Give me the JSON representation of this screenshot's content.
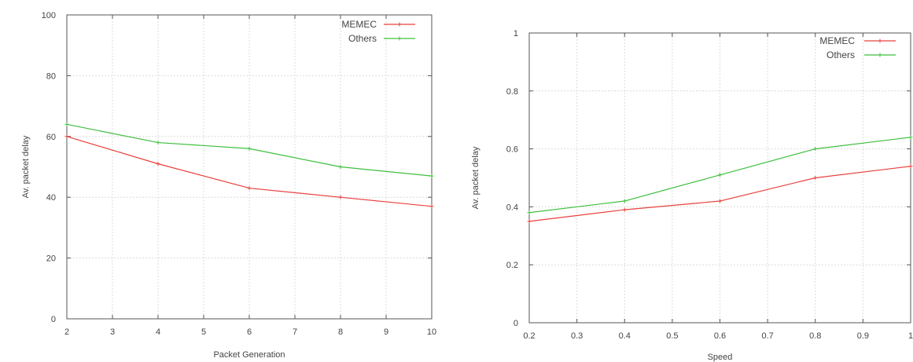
{
  "chart_data": [
    {
      "type": "line",
      "xlabel": "Packet Generation",
      "ylabel": "Av. packet delay",
      "xlim": [
        2,
        10
      ],
      "ylim": [
        0,
        100
      ],
      "xticks": [
        2,
        3,
        4,
        5,
        6,
        7,
        8,
        9,
        10
      ],
      "yticks": [
        0,
        20,
        40,
        60,
        80,
        100
      ],
      "grid": true,
      "legend": "top-right",
      "series": [
        {
          "name": "MEMEC",
          "color": "#e8413c",
          "x": [
            2,
            4,
            6,
            8,
            10
          ],
          "values": [
            60,
            51,
            43,
            40,
            37
          ]
        },
        {
          "name": "Others",
          "color": "#3fbf3f",
          "x": [
            2,
            4,
            6,
            8,
            10
          ],
          "values": [
            64,
            58,
            56,
            50,
            47
          ]
        }
      ]
    },
    {
      "type": "line",
      "xlabel": "Speed",
      "ylabel": "Av. packet delay",
      "xlim": [
        0.2,
        1
      ],
      "ylim": [
        0,
        1
      ],
      "xticks": [
        "0.2",
        "0.3",
        "0.4",
        "0.5",
        "0.6",
        "0.7",
        "0.8",
        "0.9",
        "1"
      ],
      "yticks": [
        "0",
        "0.2",
        "0.4",
        "0.6",
        "0.8",
        "1"
      ],
      "grid": true,
      "legend": "top-right",
      "series": [
        {
          "name": "MEMEC",
          "color": "#e8413c",
          "x": [
            0.2,
            0.4,
            0.6,
            0.8,
            1
          ],
          "values": [
            0.35,
            0.39,
            0.42,
            0.5,
            0.54
          ]
        },
        {
          "name": "Others",
          "color": "#3fbf3f",
          "x": [
            0.2,
            0.4,
            0.6,
            0.8,
            1
          ],
          "values": [
            0.38,
            0.42,
            0.51,
            0.6,
            0.64
          ]
        }
      ]
    }
  ]
}
